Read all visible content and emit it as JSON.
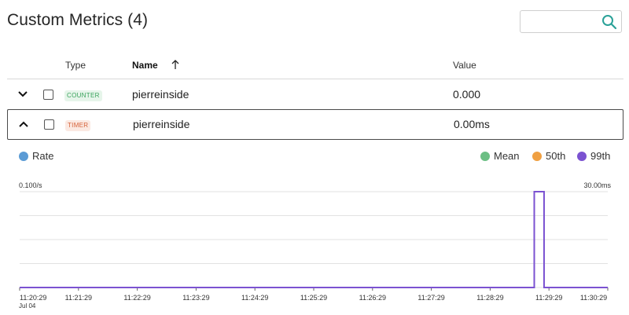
{
  "page": {
    "title": "Custom Metrics (4)"
  },
  "search": {
    "placeholder": "",
    "value": ""
  },
  "table": {
    "columns": {
      "type": "Type",
      "name": "Name",
      "value": "Value"
    },
    "sort": {
      "column": "Name",
      "direction": "ascending"
    },
    "rows": [
      {
        "expanded": false,
        "checked": false,
        "type": "COUNTER",
        "name": "pierreinside",
        "value": "0.000"
      },
      {
        "expanded": true,
        "checked": false,
        "type": "TIMER",
        "name": "pierreinside",
        "value": "0.00ms"
      }
    ]
  },
  "legend": {
    "left": [
      {
        "label": "Rate",
        "color": "#5b9bd5"
      }
    ],
    "right": [
      {
        "label": "Mean",
        "color": "#6cbf84"
      },
      {
        "label": "50th",
        "color": "#f0a042"
      },
      {
        "label": "99th",
        "color": "#7b52d1"
      }
    ]
  },
  "colors": {
    "counter_badge": "#3aa35c",
    "timer_badge": "#d6623a",
    "line": "#7b52d1"
  },
  "chart_data": {
    "type": "line",
    "y_left_label": "0.100/s",
    "y_right_label": "30.00ms",
    "x_ticks": [
      "11:20:29",
      "11:21:29",
      "11:22:29",
      "11:23:29",
      "11:24:29",
      "11:25:29",
      "11:26:29",
      "11:27:29",
      "11:28:29",
      "11:29:29",
      "11:30:29"
    ],
    "x_date_label": "Jul 04",
    "ylim_left": [
      0,
      0.1
    ],
    "ylim_right": [
      0,
      30
    ],
    "grid": true,
    "series": [
      {
        "name": "99th",
        "axis": "right",
        "color": "#7b52d1",
        "points": [
          [
            "11:20:29",
            0
          ],
          [
            "11:29:14",
            0
          ],
          [
            "11:29:14",
            30
          ],
          [
            "11:29:24",
            30
          ],
          [
            "11:29:24",
            0
          ],
          [
            "11:30:29",
            0
          ]
        ]
      }
    ]
  }
}
